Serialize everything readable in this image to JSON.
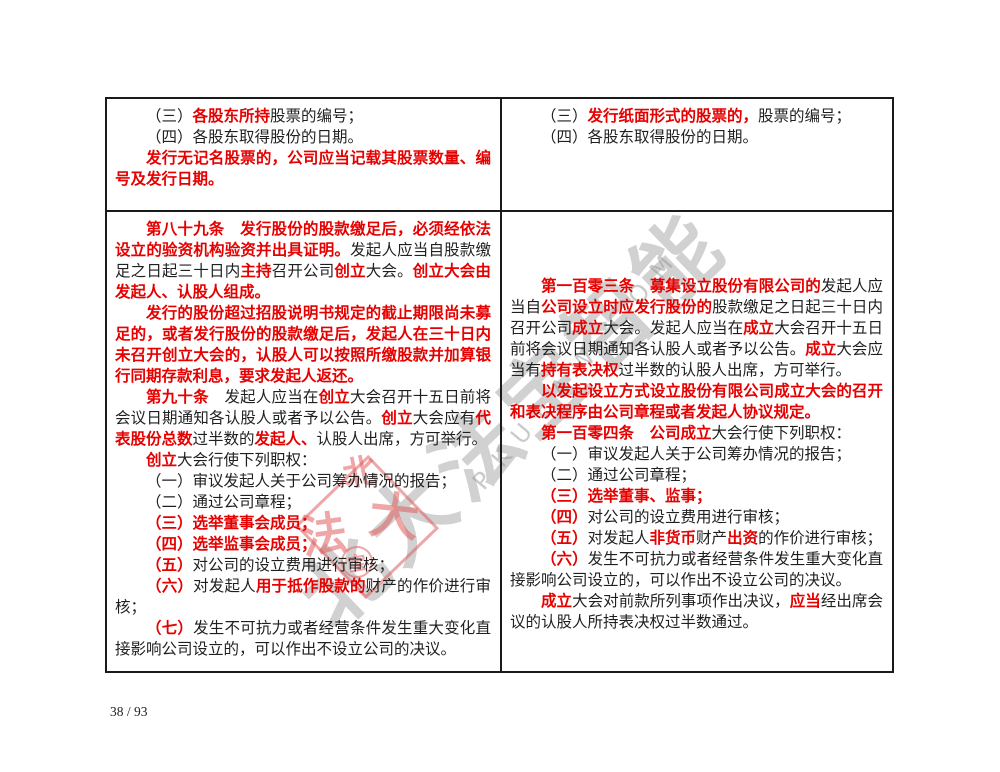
{
  "page": {
    "number_label": "38 / 93"
  },
  "colors": {
    "highlight_red": "#e60000",
    "body_black": "#1f1f1f",
    "table_border": "#1a1a1a",
    "watermark_gray": "#919191",
    "seal_red": "#e05c5c"
  },
  "watermark": {
    "cn_text": "北大法宝智能",
    "en_text": "PKULAW.COM",
    "seal_chars": [
      "北",
      "法",
      "大",
      "宝"
    ]
  },
  "table": {
    "rows": [
      {
        "left": {
          "top_gap": 0,
          "paragraphs": [
            {
              "runs": [
                {
                  "t": "（三）",
                  "s": "black"
                },
                {
                  "t": "各股东所持",
                  "s": "red"
                },
                {
                  "t": "股票的编号；",
                  "s": "black"
                }
              ]
            },
            {
              "runs": [
                {
                  "t": "（四）各股东取得股份的日期。",
                  "s": "black"
                }
              ]
            },
            {
              "runs": [
                {
                  "t": "发行无记名股票的，公司应当记载其股票数量、编号及发行日期。",
                  "s": "red"
                }
              ]
            }
          ]
        },
        "right": {
          "top_gap": 0,
          "paragraphs": [
            {
              "runs": [
                {
                  "t": "（三）",
                  "s": "black"
                },
                {
                  "t": "发行纸面形式的股票的，",
                  "s": "red"
                },
                {
                  "t": "股票的编号；",
                  "s": "black"
                }
              ]
            },
            {
              "runs": [
                {
                  "t": "（四）各股东取得股份的日期。",
                  "s": "black"
                }
              ]
            }
          ]
        }
      },
      {
        "left": {
          "top_gap": 0,
          "paragraphs": [
            {
              "runs": [
                {
                  "t": "第八十九条　发行股份的股款缴足后，必须经依法设立的验资机构验资并出具证明。",
                  "s": "red"
                },
                {
                  "t": "发起人应当自股款缴足之日起三十日内",
                  "s": "black"
                },
                {
                  "t": "主持",
                  "s": "red"
                },
                {
                  "t": "召开公司",
                  "s": "black"
                },
                {
                  "t": "创立",
                  "s": "red"
                },
                {
                  "t": "大会。",
                  "s": "black"
                },
                {
                  "t": "创立大会由发起人、认股人组成。",
                  "s": "red"
                }
              ]
            },
            {
              "runs": [
                {
                  "t": "发行的股份超过招股说明书规定的截止期限尚未募足的，或者发行股份的股款缴足后，发起人在三十日内未召开创立大会的，认股人可以按照所缴股款并加算银行同期存款利息，要求发起人返还。",
                  "s": "red"
                }
              ]
            },
            {
              "runs": [
                {
                  "t": "第九十条　",
                  "s": "red"
                },
                {
                  "t": "发起人应当在",
                  "s": "black"
                },
                {
                  "t": "创立",
                  "s": "red"
                },
                {
                  "t": "大会召开十五日前将会议日期通知各认股人或者予以公告。",
                  "s": "black"
                },
                {
                  "t": "创立",
                  "s": "red"
                },
                {
                  "t": "大会应有",
                  "s": "black"
                },
                {
                  "t": "代表股份总数",
                  "s": "red"
                },
                {
                  "t": "过半数的",
                  "s": "black"
                },
                {
                  "t": "发起人、",
                  "s": "red"
                },
                {
                  "t": "认股人出席，方可举行。",
                  "s": "black"
                }
              ]
            },
            {
              "runs": [
                {
                  "t": "创立",
                  "s": "red"
                },
                {
                  "t": "大会行使下列职权：",
                  "s": "black"
                }
              ]
            },
            {
              "runs": [
                {
                  "t": "（一）审议发起人关于公司筹办情况的报告；",
                  "s": "black"
                }
              ]
            },
            {
              "runs": [
                {
                  "t": "（二）通过公司章程；",
                  "s": "black"
                }
              ]
            },
            {
              "runs": [
                {
                  "t": "（三）选举董事会成员；",
                  "s": "red"
                }
              ]
            },
            {
              "runs": [
                {
                  "t": "（四）选举监事会成员；",
                  "s": "red"
                }
              ]
            },
            {
              "runs": [
                {
                  "t": "（五）",
                  "s": "red"
                },
                {
                  "t": "对公司的设立费用进行审核；",
                  "s": "black"
                }
              ]
            },
            {
              "runs": [
                {
                  "t": "（六）",
                  "s": "red"
                },
                {
                  "t": "对发起人",
                  "s": "black"
                },
                {
                  "t": "用于抵作股款的",
                  "s": "red"
                },
                {
                  "t": "财产的作价进行审核；",
                  "s": "black"
                }
              ]
            },
            {
              "runs": [
                {
                  "t": "（七）",
                  "s": "red"
                },
                {
                  "t": "发生不可抗力或者经营条件发生重大变化直接影响公司设立的，可以作出不设立公司的决议。",
                  "s": "black"
                }
              ]
            }
          ]
        },
        "right": {
          "top_gap": 57,
          "paragraphs": [
            {
              "runs": [
                {
                  "t": "第一百零三条　募集设立股份有限公司的",
                  "s": "red"
                },
                {
                  "t": "发起人应当自",
                  "s": "black"
                },
                {
                  "t": "公司设立时应发行股份的",
                  "s": "red"
                },
                {
                  "t": "股款缴足之日起三十日内召开公司",
                  "s": "black"
                },
                {
                  "t": "成立",
                  "s": "red"
                },
                {
                  "t": "大会。发起人应当在",
                  "s": "black"
                },
                {
                  "t": "成立",
                  "s": "red"
                },
                {
                  "t": "大会召开十五日前将会议日期通知各认股人或者予以公告。",
                  "s": "black"
                },
                {
                  "t": "成立",
                  "s": "red"
                },
                {
                  "t": "大会应当有",
                  "s": "black"
                },
                {
                  "t": "持有表决权",
                  "s": "red"
                },
                {
                  "t": "过半数的认股人出席，方可举行。",
                  "s": "black"
                }
              ]
            },
            {
              "runs": [
                {
                  "t": "以发起设立方式设立股份有限公司成立大会的召开和表决程序由公司章程或者发起人协议规定。",
                  "s": "red"
                }
              ]
            },
            {
              "runs": [
                {
                  "t": "第一百零四条　公司成立",
                  "s": "red"
                },
                {
                  "t": "大会行使下列职权：",
                  "s": "black"
                }
              ]
            },
            {
              "runs": [
                {
                  "t": "（一）审议发起人关于公司筹办情况的报告；",
                  "s": "black"
                }
              ]
            },
            {
              "runs": [
                {
                  "t": "（二）通过公司章程；",
                  "s": "black"
                }
              ]
            },
            {
              "runs": [
                {
                  "t": "（三）选举董事、监事；",
                  "s": "red"
                }
              ]
            },
            {
              "runs": [
                {
                  "t": "（四）",
                  "s": "red"
                },
                {
                  "t": "对公司的设立费用进行审核；",
                  "s": "black"
                }
              ]
            },
            {
              "runs": [
                {
                  "t": "（五）",
                  "s": "red"
                },
                {
                  "t": "对发起人",
                  "s": "black"
                },
                {
                  "t": "非货币",
                  "s": "red"
                },
                {
                  "t": "财产",
                  "s": "black"
                },
                {
                  "t": "出资",
                  "s": "red"
                },
                {
                  "t": "的作价进行审核；",
                  "s": "black"
                }
              ]
            },
            {
              "runs": [
                {
                  "t": "（六）",
                  "s": "red"
                },
                {
                  "t": "发生不可抗力或者经营条件发生重大变化直接影响公司设立的，可以作出不设立公司的决议。",
                  "s": "black"
                }
              ]
            },
            {
              "runs": [
                {
                  "t": "成立",
                  "s": "red"
                },
                {
                  "t": "大会对前款所列事项作出决议，",
                  "s": "black"
                },
                {
                  "t": "应当",
                  "s": "red"
                },
                {
                  "t": "经出席会议的认股人所持表决权过半数通过。",
                  "s": "black"
                }
              ]
            }
          ]
        }
      }
    ]
  }
}
